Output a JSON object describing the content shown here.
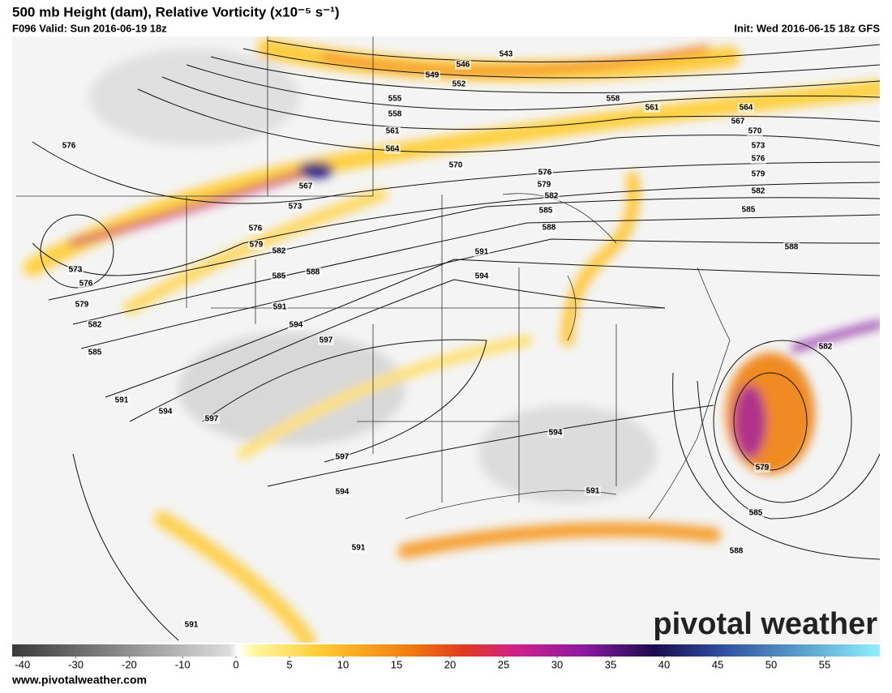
{
  "header": {
    "title": "500 mb Height (dam), Relative Vorticity (x10⁻⁵ s⁻¹)",
    "valid": "F096 Valid: Sun 2016-06-19 18z",
    "init": "Init: Wed 2016-06-15 18z GFS"
  },
  "contour_labels": [
    543,
    546,
    549,
    552,
    555,
    558,
    561,
    564,
    570,
    567,
    573,
    576,
    579,
    582,
    585,
    588,
    591,
    594,
    597,
    591,
    594,
    588,
    585,
    582,
    579,
    576,
    558,
    561,
    564,
    567,
    570,
    573,
    576,
    579,
    582,
    585,
    588,
    576,
    573,
    576,
    579,
    582,
    585,
    591,
    594,
    597,
    597,
    594,
    594,
    591,
    591,
    591,
    582,
    579,
    585,
    588
  ],
  "colorbar": {
    "ticks": [
      -40,
      -30,
      -20,
      -10,
      0,
      5,
      10,
      15,
      20,
      25,
      30,
      35,
      40,
      45,
      50,
      55
    ]
  },
  "footer": {
    "website": "www.pivotalweather.com",
    "watermark": "pivotal weather"
  }
}
